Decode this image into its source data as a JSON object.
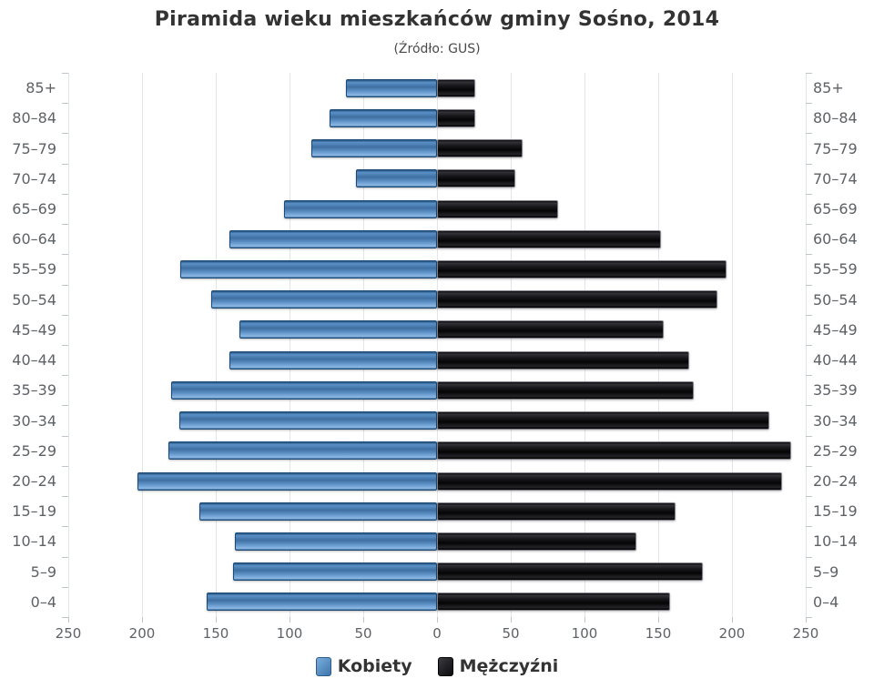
{
  "chart_data": {
    "type": "bar",
    "variant": "population-pyramid",
    "title": "Piramida wieku mieszkańców gminy Sośno, 2014",
    "subtitle": "(Źródło: GUS)",
    "categories_top_to_bottom": [
      "85+",
      "80–84",
      "75–79",
      "70–74",
      "65–69",
      "60–64",
      "55–59",
      "50–54",
      "45–49",
      "40–44",
      "35–39",
      "30–34",
      "25–29",
      "20–24",
      "15–19",
      "10–14",
      "5–9",
      "0–4"
    ],
    "series": [
      {
        "name": "Kobiety",
        "side": "left",
        "color": "#4d83b9",
        "values": [
          62,
          73,
          85,
          55,
          104,
          141,
          174,
          153,
          134,
          141,
          180,
          175,
          182,
          203,
          161,
          137,
          138,
          156
        ]
      },
      {
        "name": "Mężczyźni",
        "side": "right",
        "color": "#141418",
        "values": [
          26,
          26,
          58,
          53,
          82,
          152,
          196,
          190,
          154,
          171,
          174,
          225,
          240,
          234,
          162,
          135,
          180,
          158
        ]
      }
    ],
    "xaxis": {
      "max_each_side": 250,
      "tick_interval": 50,
      "tick_labels": [
        "250",
        "200",
        "150",
        "100",
        "50",
        "0",
        "50",
        "100",
        "150",
        "200",
        "250"
      ]
    },
    "grid": true,
    "legend_position": "bottom",
    "colors": {
      "women_bar": "#4d83b9",
      "men_bar": "#141418",
      "gridline": "#e2e5ea",
      "axis_label": "#5e6165",
      "title_text": "#333333"
    }
  }
}
